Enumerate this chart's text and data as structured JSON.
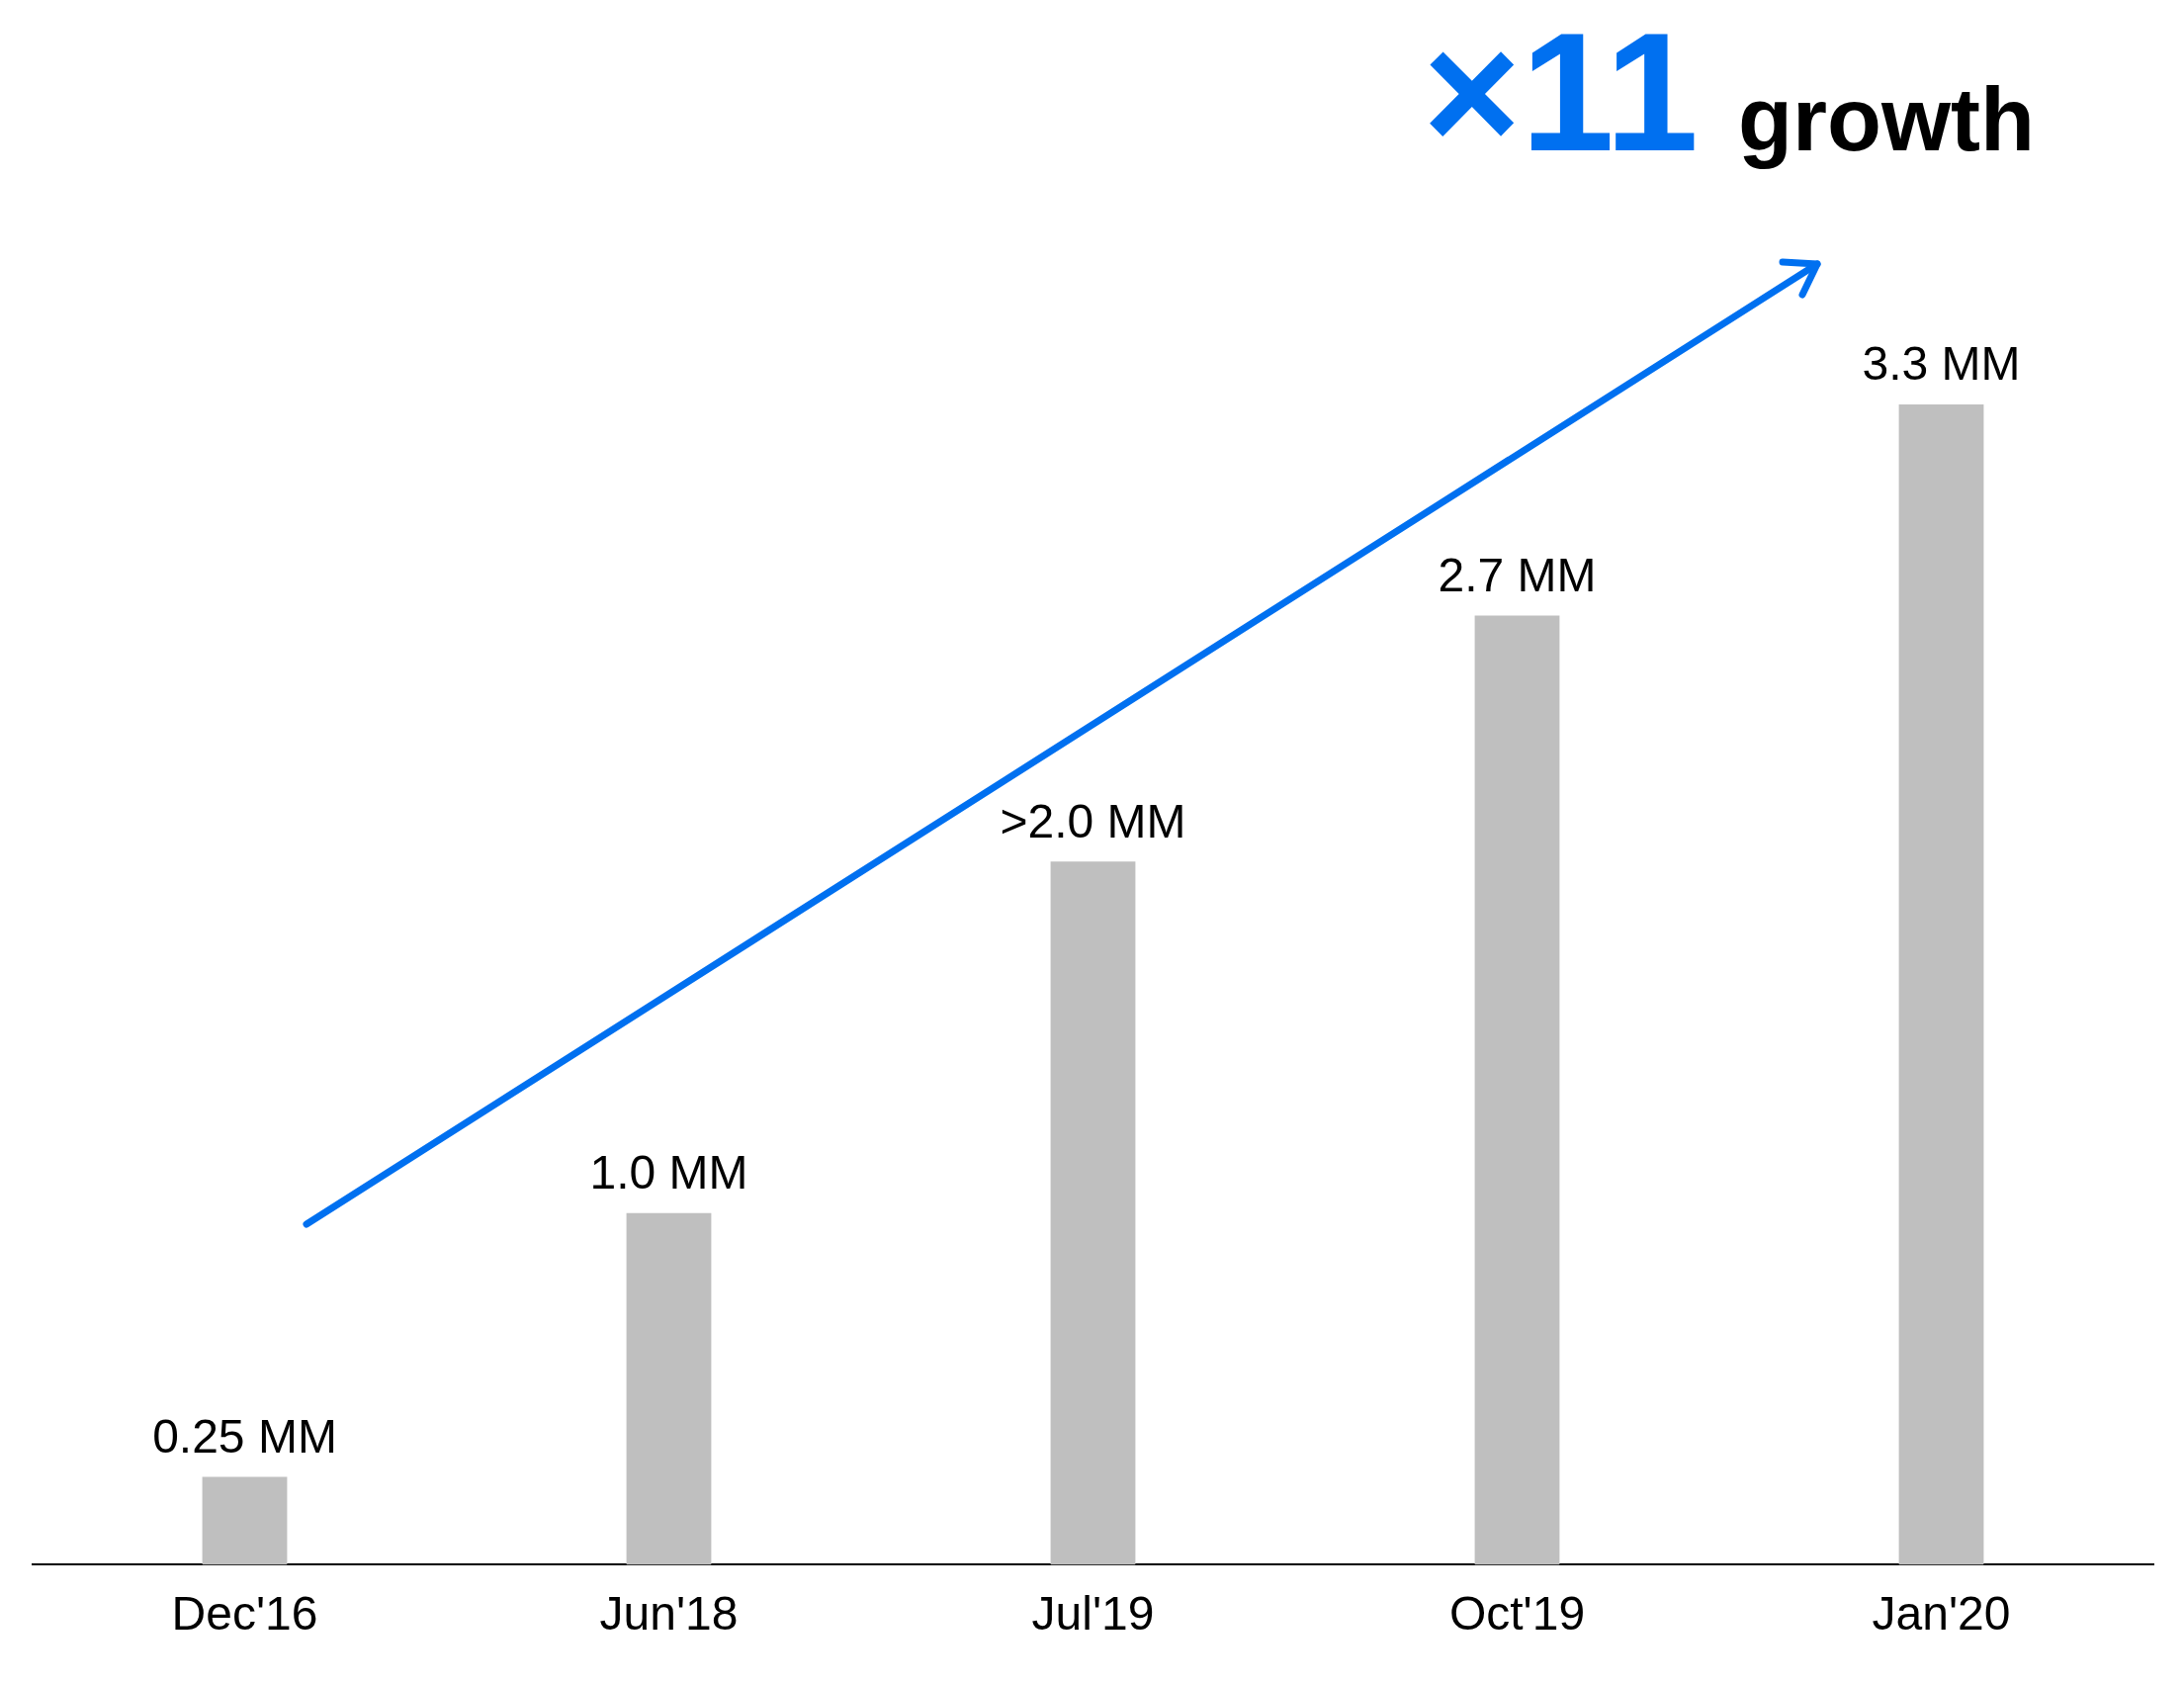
{
  "chart_data": {
    "type": "bar",
    "categories": [
      "Dec'16",
      "Jun'18",
      "Jul'19",
      "Oct'19",
      "Jan'20"
    ],
    "values": [
      0.25,
      1.0,
      2.0,
      2.7,
      3.3
    ],
    "value_labels": [
      "0.25 MM",
      "1.0 MM",
      ">2.0 MM",
      "2.7 MM",
      "3.3 MM"
    ],
    "color": "#bfbfbf",
    "grid": false,
    "legend": false,
    "tick_labels": "x",
    "annotations": [
      "×11 growth"
    ]
  }
}
